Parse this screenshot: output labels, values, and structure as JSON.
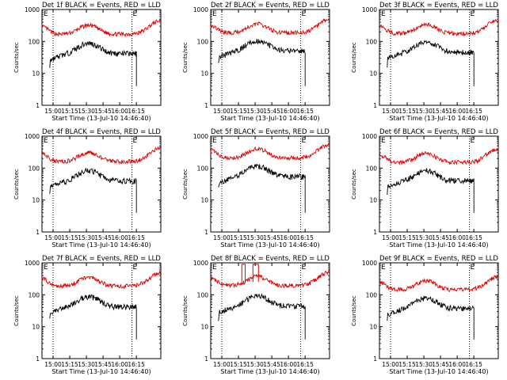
{
  "chart_data": [
    {
      "title": "Det 1f BLACK = Events, RED = LLD",
      "type": "line"
    },
    {
      "title": "Det 2f BLACK = Events, RED = LLD",
      "type": "line"
    },
    {
      "title": "Det 3f BLACK = Events, RED = LLD",
      "type": "line"
    },
    {
      "title": "Det 4f BLACK = Events, RED = LLD",
      "type": "line"
    },
    {
      "title": "Det 5f BLACK = Events, RED = LLD",
      "type": "line"
    },
    {
      "title": "Det 6f BLACK = Events, RED = LLD",
      "type": "line"
    },
    {
      "title": "Det 7f BLACK = Events, RED = LLD",
      "type": "line"
    },
    {
      "title": "Det 8f BLACK = Events, RED = LLD",
      "type": "line"
    },
    {
      "title": "Det 9f BLACK = Events, RED = LLD",
      "type": "line"
    }
  ],
  "shared": {
    "xlabel": "Start Time (13-Jul-10 14:46:40)",
    "ylabel": "Counts/sec",
    "x_ticks": [
      "15:00",
      "15:15",
      "15:30",
      "15:45",
      "16:00",
      "16:15"
    ],
    "y_ticks": [
      "1",
      "10",
      "100",
      "1000"
    ],
    "ylim": [
      1,
      1000
    ],
    "xlim_minutes": [
      -10,
      97
    ],
    "vline_minutes": [
      0,
      71
    ],
    "markers": [
      "E",
      "E"
    ],
    "series": [
      {
        "name": "LLD",
        "color": "#e00000",
        "approx_range": [
          150,
          600
        ]
      },
      {
        "name": "Events",
        "color": "#000000",
        "approx_range": [
          30,
          140
        ]
      }
    ]
  }
}
